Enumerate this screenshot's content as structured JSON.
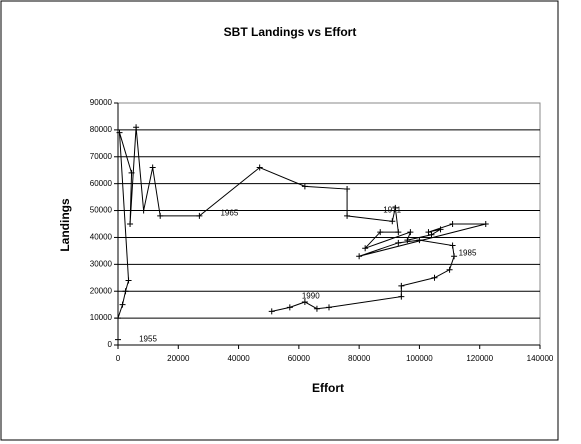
{
  "chart_data": {
    "type": "scatter",
    "title": "SBT Landings vs Effort",
    "x_label": "Effort",
    "y_label": "Landings",
    "x": [
      0,
      0,
      1500,
      2500,
      3500,
      500,
      4500,
      4000,
      6000,
      8500,
      11500,
      14000,
      27000,
      47000,
      62000,
      76000,
      76000,
      91000,
      92000,
      93000,
      87000,
      82000,
      97000,
      96000,
      104000,
      107000,
      103000,
      111000,
      122000,
      80000,
      93000,
      100000,
      111000,
      111500,
      110000,
      105000,
      94000,
      94000,
      70000,
      66000,
      62000,
      57000,
      51000
    ],
    "values": [
      2000,
      10000,
      15000,
      20000,
      24000,
      79000,
      64000,
      45000,
      81000,
      50000,
      66000,
      48000,
      48000,
      66000,
      59000,
      58000,
      48000,
      46000,
      51000,
      42000,
      42000,
      36000,
      42000,
      39000,
      41000,
      43000,
      42000,
      45000,
      45000,
      33000,
      38000,
      39000,
      37000,
      33000,
      28000,
      25000,
      22000,
      18000,
      14000,
      13500,
      16000,
      14000,
      12500
    ],
    "color": "#000000",
    "xlim": [
      0,
      140000
    ],
    "xticks": [
      0,
      20000,
      40000,
      60000,
      80000,
      100000,
      120000,
      140000
    ],
    "ylim": [
      0,
      90000
    ],
    "yticks": [
      0,
      10000,
      20000,
      30000,
      40000,
      50000,
      60000,
      70000,
      80000,
      90000
    ],
    "grid": true,
    "annotations": [
      {
        "text": "1955",
        "x": 7000,
        "y": 2000
      },
      {
        "text": "1965",
        "x": 34000,
        "y": 49000
      },
      {
        "text": "1971",
        "x": 88000,
        "y": 50000
      },
      {
        "text": "1985",
        "x": 113000,
        "y": 34000
      },
      {
        "text": "1990",
        "x": 61000,
        "y": 18000
      }
    ]
  }
}
